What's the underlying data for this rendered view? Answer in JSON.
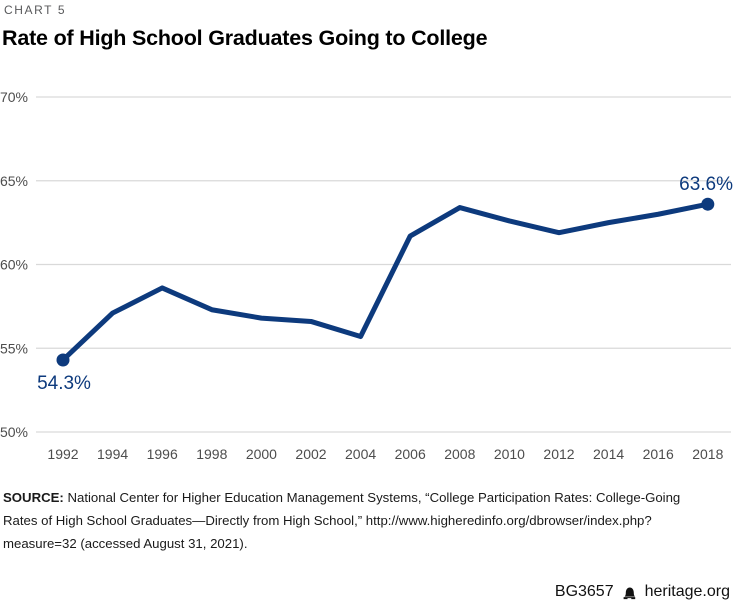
{
  "page": {
    "kicker": "CHART 5",
    "title": "Rate of High School Graduates Going to College"
  },
  "chart_data": {
    "type": "line",
    "title": "Rate of High School Graduates Going to College",
    "x": [
      1992,
      1994,
      1996,
      1998,
      2000,
      2002,
      2004,
      2006,
      2008,
      2010,
      2012,
      2014,
      2016,
      2018
    ],
    "values": [
      54.3,
      57.1,
      58.6,
      57.3,
      56.8,
      56.6,
      55.7,
      61.7,
      63.4,
      62.6,
      61.9,
      62.5,
      63.0,
      63.6
    ],
    "xlabel": "",
    "ylabel": "",
    "ylim": [
      50,
      70
    ],
    "yticks": [
      50,
      55,
      60,
      65,
      70
    ],
    "ytick_suffix": "%",
    "grid": true,
    "legend_position": "none",
    "first_point_label": "54.3%",
    "last_point_label": "63.6%",
    "colors": {
      "line": "#0d3a7d",
      "point_label": "#0d3a7d",
      "grid": "#d9d9d9",
      "axis_text": "#4d4d4d"
    }
  },
  "source": {
    "label": "SOURCE:",
    "line1_rest": " National Center for Higher Education Management Systems, “College Participation Rates: College-Going",
    "line2": "Rates of High School Graduates—Directly from High School,” http://www.higheredinfo.org/dbrowser/index.php?",
    "line3": "measure=32 (accessed August 31, 2021)."
  },
  "footer": {
    "doc_id": "BG3657",
    "site": "heritage.org"
  }
}
